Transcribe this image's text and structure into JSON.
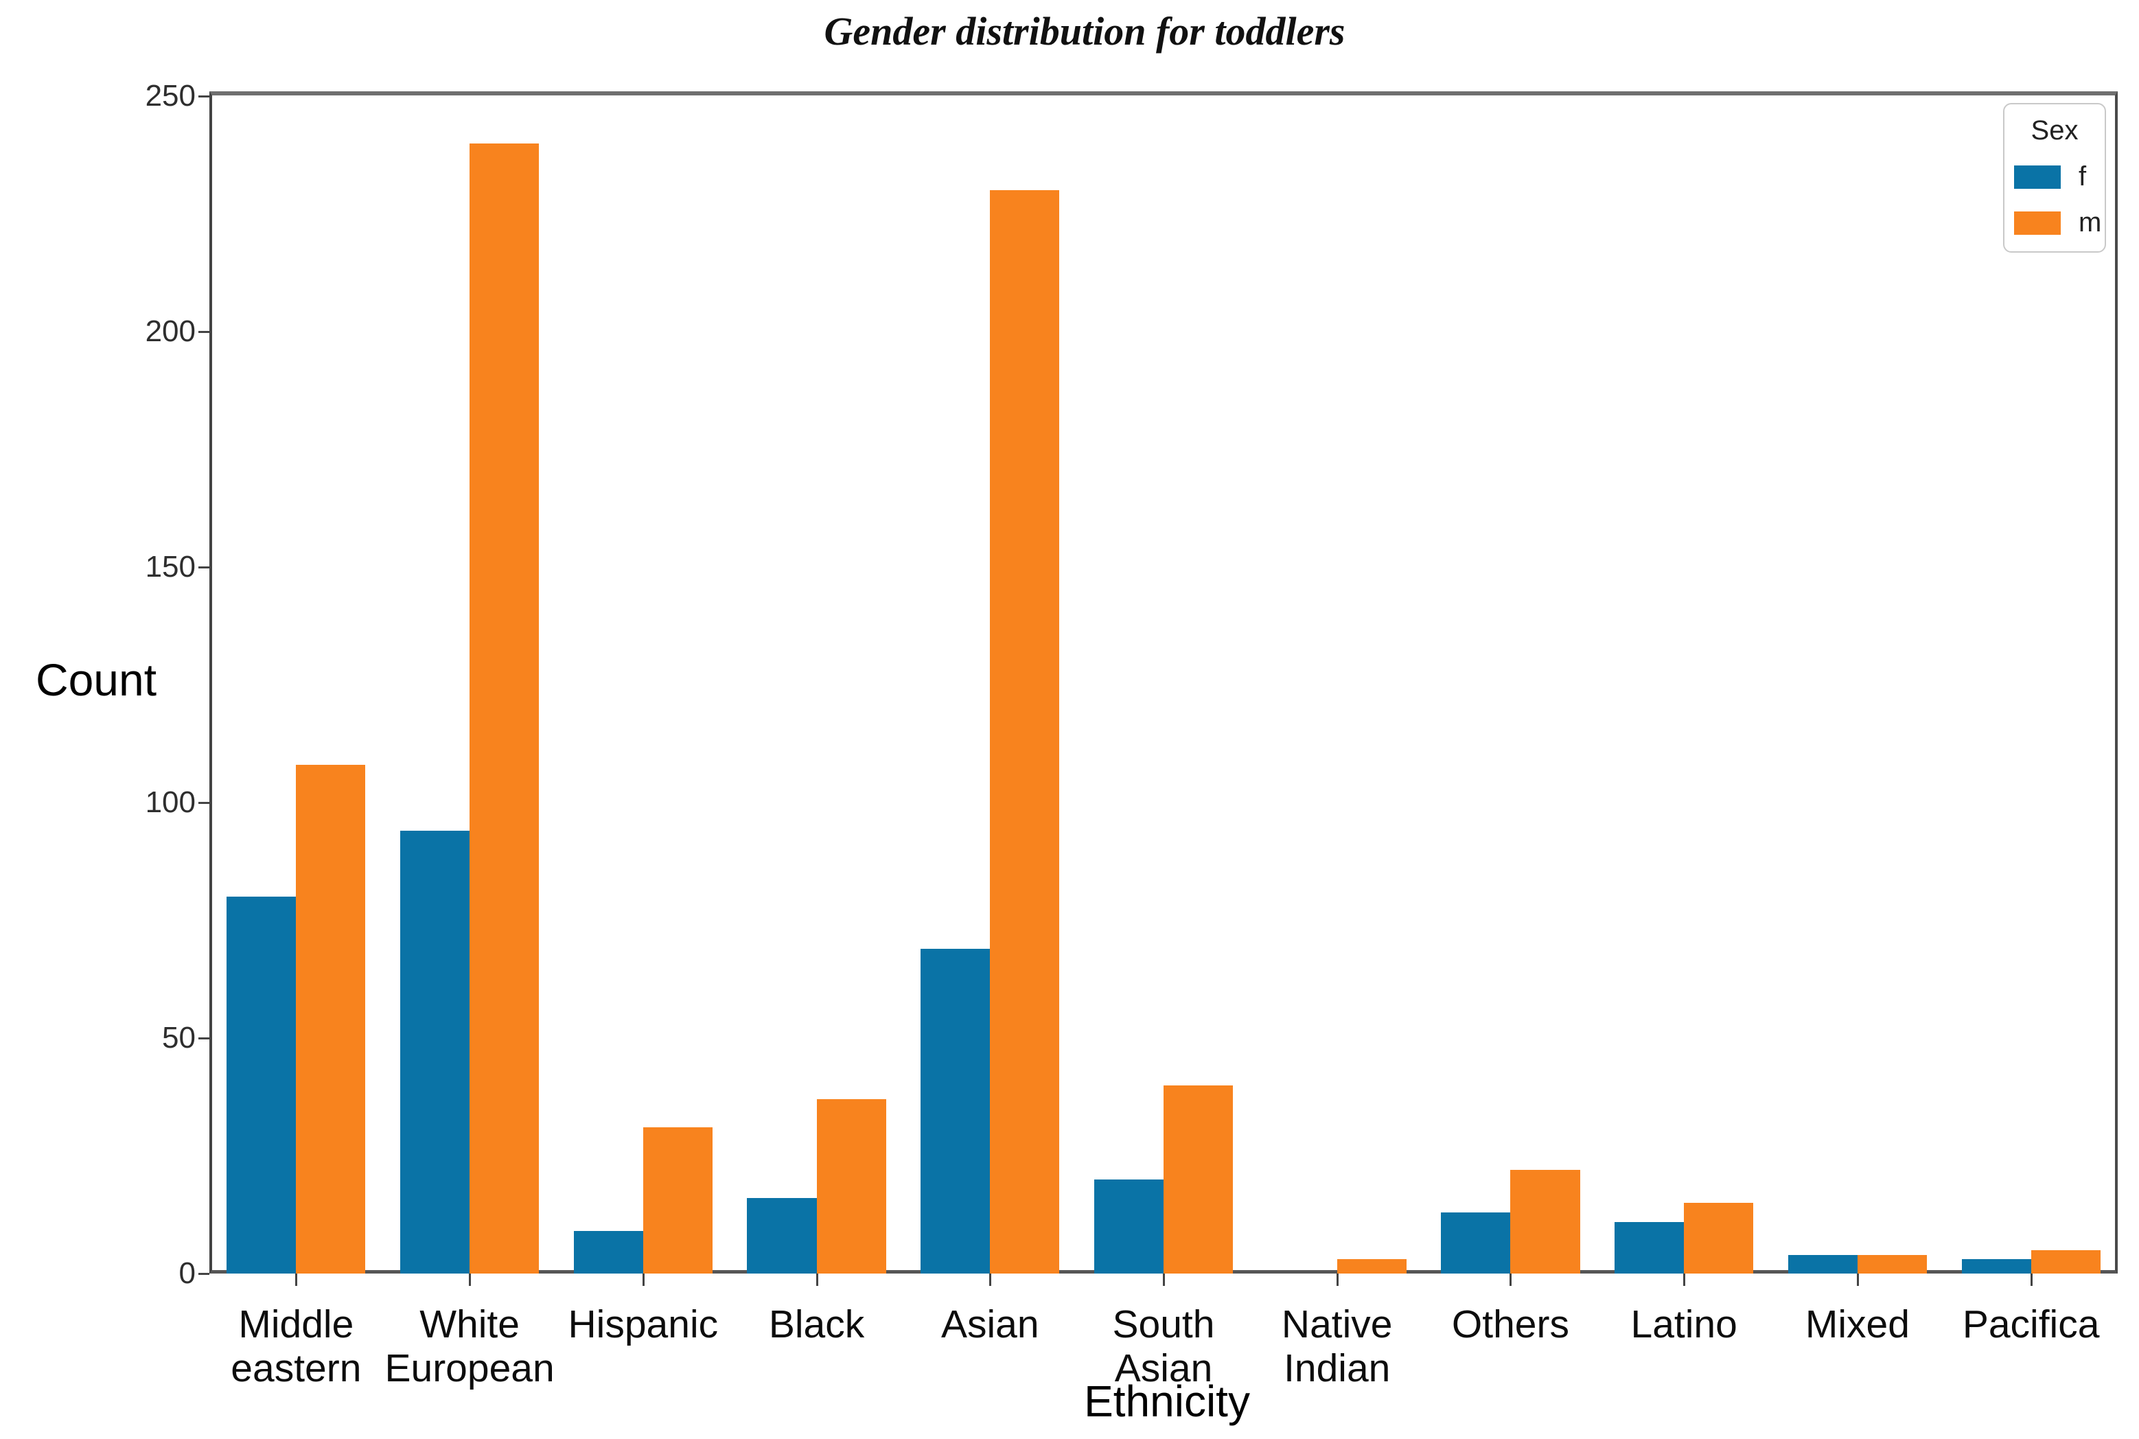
{
  "chart_data": {
    "type": "bar",
    "title": "Gender distribution for toddlers",
    "xlabel": "Ethnicity",
    "ylabel": "Count",
    "ylim": [
      0,
      250
    ],
    "yticks": [
      0,
      50,
      100,
      150,
      200,
      250
    ],
    "grid": false,
    "legend_position": "upper right",
    "categories": [
      "Middle eastern",
      "White European",
      "Hispanic",
      "Black",
      "Asian",
      "South Asian",
      "Native Indian",
      "Others",
      "Latino",
      "Mixed",
      "Pacifica"
    ],
    "series": [
      {
        "name": "f",
        "color": "#0a73a6",
        "values": [
          80,
          94,
          9,
          16,
          69,
          20,
          0,
          13,
          11,
          4,
          3
        ]
      },
      {
        "name": "m",
        "color": "#f8831e",
        "values": [
          108,
          240,
          31,
          37,
          230,
          40,
          3,
          22,
          15,
          4,
          5
        ]
      }
    ]
  },
  "legend": {
    "title": "Sex",
    "entries": [
      {
        "label": "f",
        "color": "#0a73a6"
      },
      {
        "label": "m",
        "color": "#f8831e"
      }
    ]
  }
}
